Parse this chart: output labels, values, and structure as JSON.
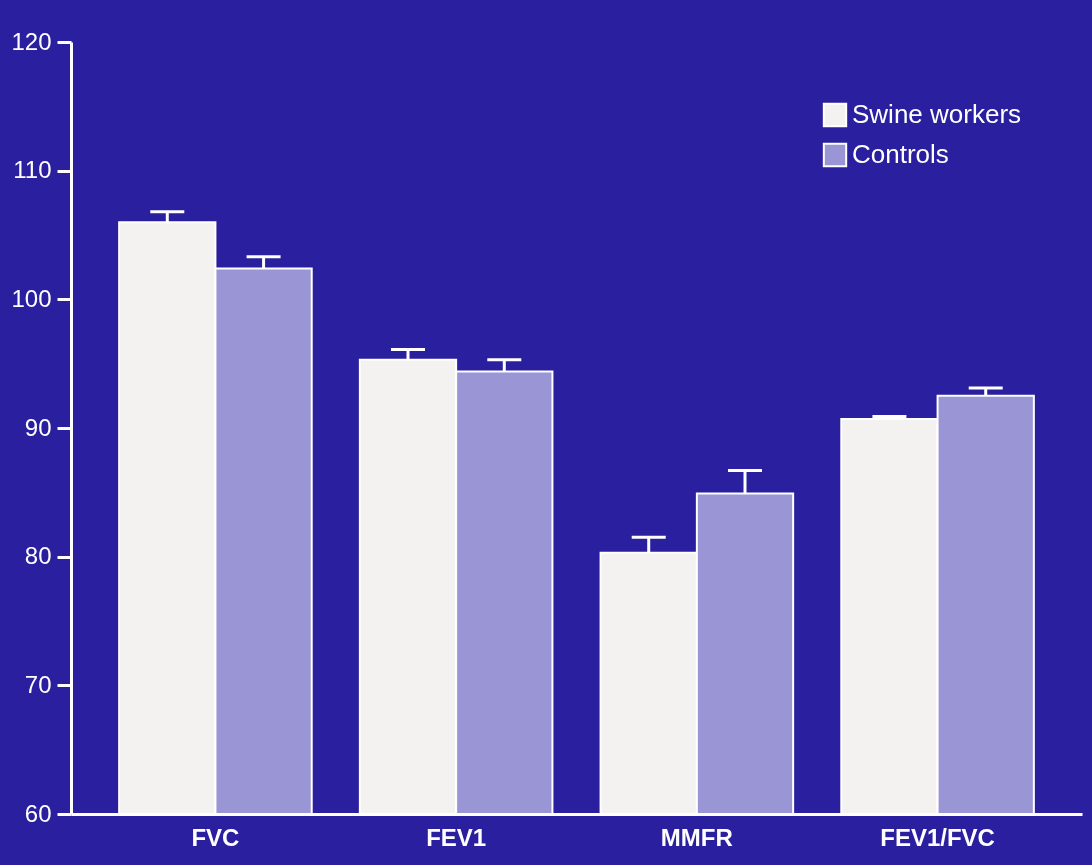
{
  "chart_data": {
    "type": "bar",
    "categories": [
      "FVC",
      "FEV1",
      "MMFR",
      "FEV1/FVC"
    ],
    "series": [
      {
        "name": "Swine workers",
        "color": "#f4f2f0",
        "values": [
          106.0,
          95.3,
          80.3,
          90.7
        ],
        "errors": [
          [
            106.0,
            106.8
          ],
          [
            95.3,
            96.1
          ],
          [
            80.3,
            81.5
          ],
          [
            90.7,
            90.9
          ]
        ]
      },
      {
        "name": "Controls",
        "color": "#9a96d6",
        "values": [
          102.4,
          94.4,
          84.9,
          92.5
        ],
        "errors": [
          [
            102.4,
            103.3
          ],
          [
            94.4,
            95.3
          ],
          [
            84.9,
            86.7
          ],
          [
            92.5,
            93.1
          ]
        ]
      }
    ],
    "ylim": [
      60,
      120
    ],
    "yticks": [
      60,
      70,
      80,
      90,
      100,
      110,
      120
    ],
    "grid": false,
    "legend": "top right"
  }
}
